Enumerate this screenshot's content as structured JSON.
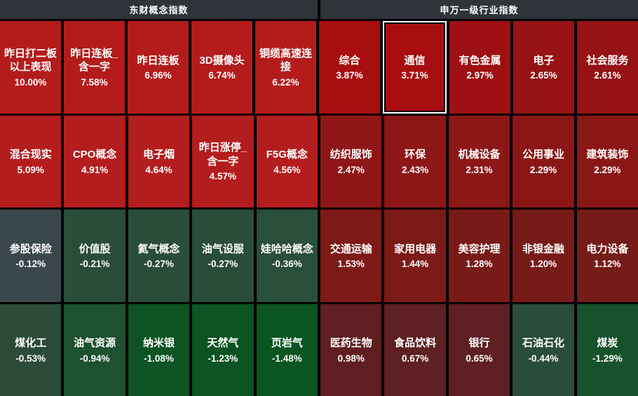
{
  "header": {
    "left_title": "东财概念指数",
    "right_title": "申万一级行业指数"
  },
  "colors": {
    "background": "#000000",
    "header_bar": "#2f343a",
    "text": "#ffffff",
    "selected_border": "#ffffff"
  },
  "chart_data": {
    "type": "heatmap",
    "layout": "10 columns x 4 rows; left 5 columns = concept indices, right 5 columns = industry indices; color encodes daily change (red = up, green = down, gray = near flat)",
    "sections": [
      {
        "title": "东财概念指数",
        "rows": [
          [
            {
              "name": "昨日打二板以上表现",
              "value": "10.00%",
              "color": "#b41c1c"
            },
            {
              "name": "昨日连板_含一字",
              "value": "7.58%",
              "color": "#b41c1c"
            },
            {
              "name": "昨日连板",
              "value": "6.96%",
              "color": "#b41c1c"
            },
            {
              "name": "3D摄像头",
              "value": "6.74%",
              "color": "#b41c1c"
            },
            {
              "name": "铜缆高速连接",
              "value": "6.22%",
              "color": "#b41c1c"
            }
          ],
          [
            {
              "name": "混合现实",
              "value": "5.09%",
              "color": "#b41d1d"
            },
            {
              "name": "CPO概念",
              "value": "4.91%",
              "color": "#b41d1d"
            },
            {
              "name": "电子烟",
              "value": "4.64%",
              "color": "#b41d1d"
            },
            {
              "name": "昨日涨停_含一字",
              "value": "4.57%",
              "color": "#b41d1d"
            },
            {
              "name": "F5G概念",
              "value": "4.56%",
              "color": "#b41d1d"
            }
          ],
          [
            {
              "name": "参股保险",
              "value": "-0.12%",
              "color": "#3a474c"
            },
            {
              "name": "价值股",
              "value": "-0.21%",
              "color": "#2a4d3a"
            },
            {
              "name": "氦气概念",
              "value": "-0.27%",
              "color": "#2a4d3a"
            },
            {
              "name": "油气设服",
              "value": "-0.27%",
              "color": "#2a4d3a"
            },
            {
              "name": "娃哈哈概念",
              "value": "-0.36%",
              "color": "#294e3a"
            }
          ],
          [
            {
              "name": "煤化工",
              "value": "-0.53%",
              "color": "#2b4b38"
            },
            {
              "name": "油气资源",
              "value": "-0.94%",
              "color": "#1d5130"
            },
            {
              "name": "纳米银",
              "value": "-1.08%",
              "color": "#0d5323"
            },
            {
              "name": "天然气",
              "value": "-1.23%",
              "color": "#0c5423"
            },
            {
              "name": "页岩气",
              "value": "-1.48%",
              "color": "#0a5521"
            }
          ]
        ]
      },
      {
        "title": "申万一级行业指数",
        "rows": [
          [
            {
              "name": "综合",
              "value": "3.87%",
              "color": "#a80d10"
            },
            {
              "name": "通信",
              "value": "3.71%",
              "color": "#a80d10",
              "selected": true
            },
            {
              "name": "有色金属",
              "value": "2.97%",
              "color": "#9d1013"
            },
            {
              "name": "电子",
              "value": "2.65%",
              "color": "#971214"
            },
            {
              "name": "社会服务",
              "value": "2.61%",
              "color": "#961214"
            }
          ],
          [
            {
              "name": "纺织服饰",
              "value": "2.47%",
              "color": "#8e1616"
            },
            {
              "name": "环保",
              "value": "2.43%",
              "color": "#8d1616"
            },
            {
              "name": "机械设备",
              "value": "2.31%",
              "color": "#8b1716"
            },
            {
              "name": "公用事业",
              "value": "2.29%",
              "color": "#8a1716"
            },
            {
              "name": "建筑装饰",
              "value": "2.29%",
              "color": "#8a1716"
            }
          ],
          [
            {
              "name": "交通运输",
              "value": "1.53%",
              "color": "#7d1a17"
            },
            {
              "name": "家用电器",
              "value": "1.44%",
              "color": "#7b1a17"
            },
            {
              "name": "美容护理",
              "value": "1.28%",
              "color": "#781b18"
            },
            {
              "name": "非银金融",
              "value": "1.20%",
              "color": "#771b18"
            },
            {
              "name": "电力设备",
              "value": "1.12%",
              "color": "#751c18"
            }
          ],
          [
            {
              "name": "医药生物",
              "value": "0.98%",
              "color": "#5f1e21"
            },
            {
              "name": "食品饮料",
              "value": "0.67%",
              "color": "#5e2022"
            },
            {
              "name": "银行",
              "value": "0.65%",
              "color": "#5e2022"
            },
            {
              "name": "石油石化",
              "value": "-0.44%",
              "color": "#2a4c3b"
            },
            {
              "name": "煤炭",
              "value": "-1.29%",
              "color": "#16522b"
            }
          ]
        ]
      }
    ]
  }
}
